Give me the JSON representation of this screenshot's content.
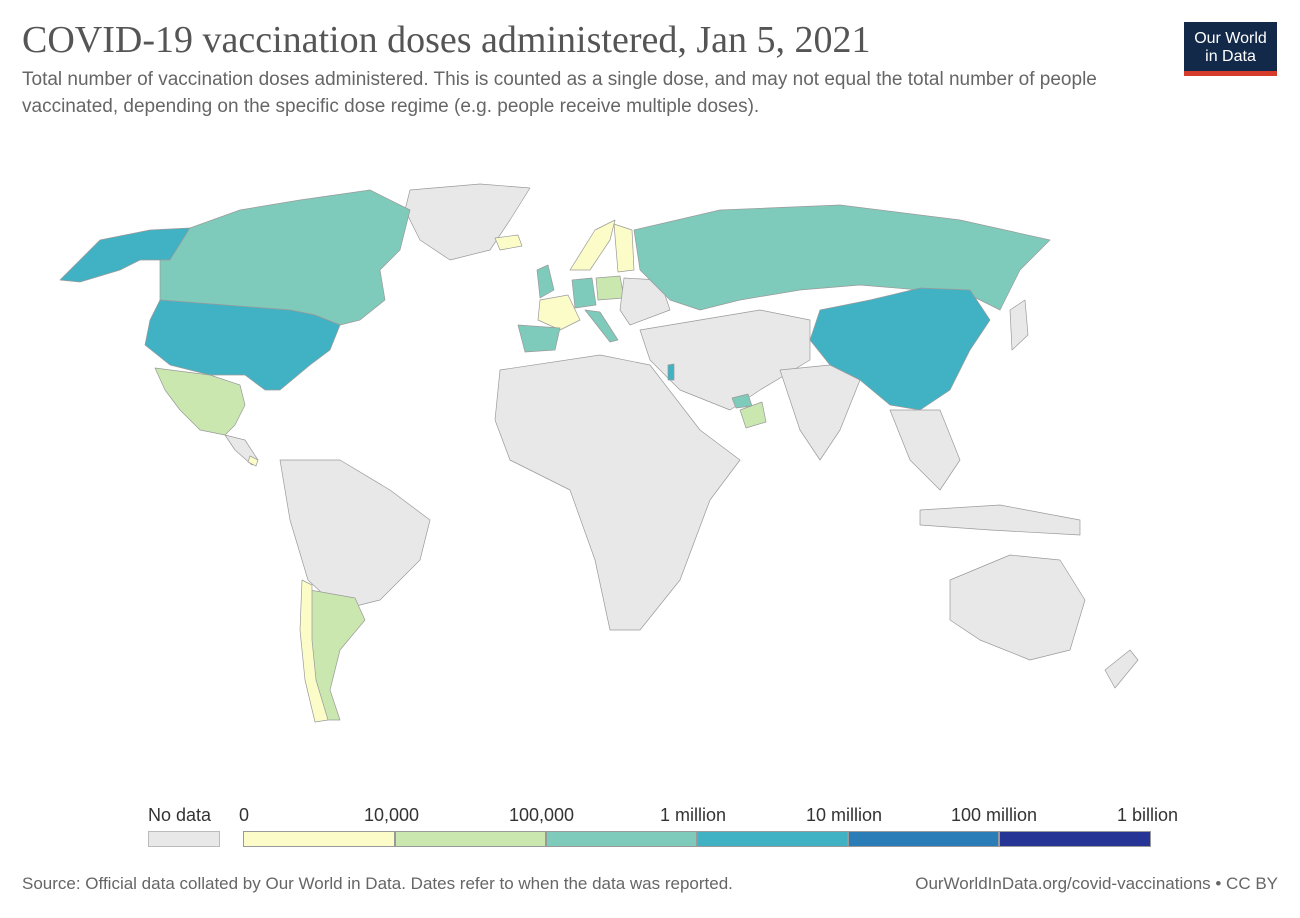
{
  "header": {
    "title": "COVID-19 vaccination doses administered, Jan 5, 2021",
    "subtitle": "Total number of vaccination doses administered. This is counted as a single dose, and may not equal the total number of people vaccinated, depending on the specific dose regime (e.g. people receive multiple doses).",
    "logo_line1": "Our World",
    "logo_line2": "in Data"
  },
  "legend": {
    "no_data_label": "No data",
    "bins": [
      {
        "label": "0",
        "color": "#fcfcc8"
      },
      {
        "label": "10,000",
        "color": "#c9e7af"
      },
      {
        "label": "100,000",
        "color": "#7fcbbb"
      },
      {
        "label": "1 million",
        "color": "#41b2c4"
      },
      {
        "label": "10 million",
        "color": "#2b7db7"
      },
      {
        "label": "100 million",
        "color": "#253495"
      },
      {
        "label": "1 billion",
        "color": ""
      }
    ],
    "no_data_color": "#e8e8e8"
  },
  "map_data": {
    "type": "choropleth",
    "regions": [
      {
        "name": "United States",
        "bin": "1 million - 10 million"
      },
      {
        "name": "China",
        "bin": "1 million - 10 million"
      },
      {
        "name": "Canada",
        "bin": "100,000 - 1 million"
      },
      {
        "name": "Russia",
        "bin": "100,000 - 1 million"
      },
      {
        "name": "United Kingdom",
        "bin": "100,000 - 1 million"
      },
      {
        "name": "Germany",
        "bin": "100,000 - 1 million"
      },
      {
        "name": "Spain",
        "bin": "100,000 - 1 million"
      },
      {
        "name": "Italy",
        "bin": "100,000 - 1 million"
      },
      {
        "name": "Israel",
        "bin": "1 million - 10 million"
      },
      {
        "name": "United Arab Emirates",
        "bin": "100,000 - 1 million"
      },
      {
        "name": "Mexico",
        "bin": "10,000 - 100,000"
      },
      {
        "name": "Poland",
        "bin": "10,000 - 100,000"
      },
      {
        "name": "Oman",
        "bin": "10,000 - 100,000"
      },
      {
        "name": "Argentina",
        "bin": "10,000 - 100,000"
      },
      {
        "name": "France",
        "bin": "0 - 10,000"
      },
      {
        "name": "Chile",
        "bin": "0 - 10,000"
      },
      {
        "name": "Finland",
        "bin": "0 - 10,000"
      },
      {
        "name": "Norway",
        "bin": "0 - 10,000"
      },
      {
        "name": "Costa Rica",
        "bin": "0 - 10,000"
      },
      {
        "name": "Iceland",
        "bin": "0 - 10,000"
      }
    ]
  },
  "footer": {
    "source": "Source: Official data collated by Our World in Data. Dates refer to when the data was reported.",
    "url": "OurWorldInData.org/covid-vaccinations • CC BY"
  }
}
